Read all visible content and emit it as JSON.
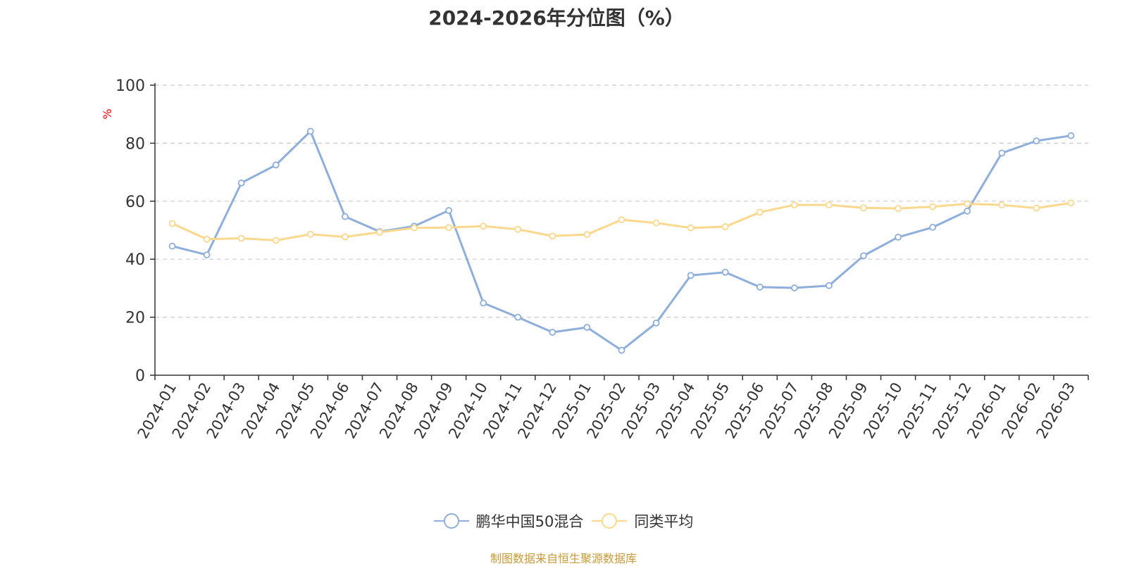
{
  "chart_data": {
    "type": "line",
    "title": "2024-2026年分位图（%）",
    "ylabel": "%",
    "ylim": [
      0,
      100
    ],
    "yticks": [
      0,
      20,
      40,
      60,
      80,
      100
    ],
    "grid": true,
    "legend_position": "bottom-center",
    "categories": [
      "2024-01",
      "2024-02",
      "2024-03",
      "2024-04",
      "2024-05",
      "2024-06",
      "2024-07",
      "2024-08",
      "2024-09",
      "2024-10",
      "2024-11",
      "2024-12",
      "2025-01",
      "2025-02",
      "2025-03",
      "2025-04",
      "2025-05",
      "2025-06",
      "2025-07",
      "2025-08",
      "2025-09",
      "2025-10",
      "2025-11",
      "2025-12",
      "2026-01",
      "2026-02",
      "2026-03"
    ],
    "series": [
      {
        "name": "鹏华中国50混合",
        "color": "#8eaedb",
        "values": [
          44.5,
          41.5,
          66.3,
          72.5,
          84.1,
          54.7,
          49.5,
          51.4,
          56.8,
          24.9,
          20.0,
          14.8,
          16.5,
          8.6,
          18.0,
          34.4,
          35.5,
          30.4,
          30.1,
          30.9,
          41.2,
          47.6,
          51.0,
          56.6,
          76.6,
          80.8,
          82.6
        ]
      },
      {
        "name": "同类平均",
        "color": "#fbd88d",
        "values": [
          52.3,
          46.9,
          47.2,
          46.5,
          48.6,
          47.7,
          49.3,
          50.8,
          50.9,
          51.4,
          50.3,
          48.0,
          48.5,
          53.6,
          52.5,
          50.8,
          51.2,
          56.2,
          58.7,
          58.7,
          57.7,
          57.5,
          58.1,
          59.1,
          58.7,
          57.6,
          59.4
        ]
      }
    ]
  },
  "source_note": "制图数据来自恒生聚源数据库"
}
